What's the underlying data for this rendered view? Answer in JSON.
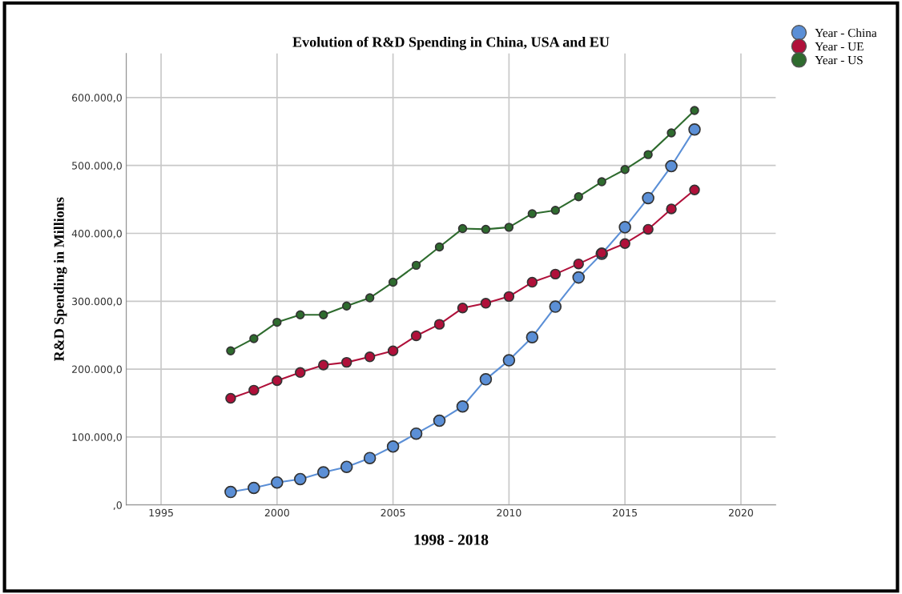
{
  "chart_data": {
    "type": "line",
    "title": "Evolution of R&D Spending in China, USA and EU",
    "xlabel": "1998 - 2018",
    "ylabel": "R&D Spending in Millions",
    "x": [
      1998,
      1999,
      2000,
      2001,
      2002,
      2003,
      2004,
      2005,
      2006,
      2007,
      2008,
      2009,
      2010,
      2011,
      2012,
      2013,
      2014,
      2015,
      2016,
      2017,
      2018
    ],
    "series": [
      {
        "name": "Year - China",
        "color": "#5b8fd6",
        "values": [
          19000,
          25000,
          33000,
          38000,
          48000,
          56000,
          69000,
          86000,
          105000,
          124000,
          145000,
          185000,
          213000,
          247000,
          292000,
          335000,
          370000,
          409000,
          452000,
          499000,
          553000
        ]
      },
      {
        "name": "Year - UE",
        "color": "#b0103a",
        "values": [
          157000,
          169000,
          183000,
          195000,
          206000,
          210000,
          218000,
          227000,
          249000,
          266000,
          290000,
          297000,
          307000,
          328000,
          340000,
          355000,
          371000,
          385000,
          406000,
          436000,
          464000
        ]
      },
      {
        "name": "Year - US",
        "color": "#2e6b2e",
        "values": [
          227000,
          245000,
          269000,
          280000,
          280000,
          293000,
          305000,
          328000,
          353000,
          380000,
          407000,
          406000,
          409000,
          429000,
          434000,
          454000,
          476000,
          494000,
          516000,
          548000,
          581000
        ]
      }
    ],
    "xlim": [
      1993.5,
      2021.5
    ],
    "xticks": [
      1995,
      2000,
      2005,
      2010,
      2015,
      2020
    ],
    "ylim": [
      0,
      665000
    ],
    "yticks": [
      {
        "value": 0,
        "label": ",0"
      },
      {
        "value": 100000,
        "label": "100.000,0"
      },
      {
        "value": 200000,
        "label": "200.000,0"
      },
      {
        "value": 300000,
        "label": "300.000,0"
      },
      {
        "value": 400000,
        "label": "400.000,0"
      },
      {
        "value": 500000,
        "label": "500.000,0"
      },
      {
        "value": 600000,
        "label": "600.000,0"
      }
    ],
    "grid": true,
    "legend": "top right",
    "marker": "circle",
    "line_style": "solid"
  }
}
